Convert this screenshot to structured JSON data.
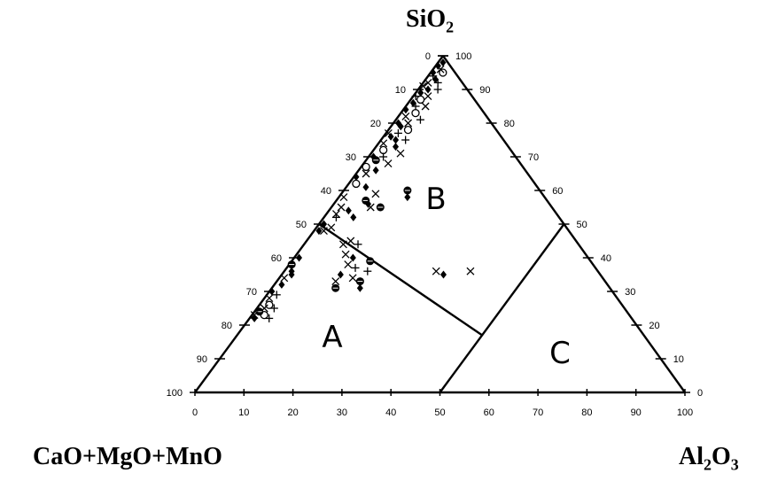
{
  "chart_data": {
    "type": "scatter",
    "subtype": "ternary",
    "vertex_labels": {
      "top": {
        "main": "SiO",
        "sub": "2"
      },
      "left": {
        "main": "CaO+MgO+MnO",
        "sub": ""
      },
      "right": {
        "main": "Al",
        "sub": "2",
        "tail": "O",
        "sub2": "3"
      }
    },
    "axes": {
      "bottom_ticks": [
        "0",
        "10",
        "20",
        "30",
        "40",
        "50",
        "60",
        "70",
        "80",
        "90",
        "100"
      ],
      "left_ticks": [
        "0",
        "10",
        "20",
        "30",
        "40",
        "50",
        "60",
        "70",
        "80",
        "90",
        "100"
      ],
      "right_ticks": [
        "0",
        "10",
        "20",
        "30",
        "40",
        "50",
        "60",
        "70",
        "80",
        "90",
        "100"
      ],
      "range": [
        0,
        100
      ],
      "grid": false
    },
    "region_labels": [
      "A",
      "B",
      "C"
    ],
    "boundaries": [
      {
        "from": {
          "s": 50,
          "al": 0
        },
        "to": {
          "s": 17,
          "al": 50
        }
      },
      {
        "from": {
          "s": 0,
          "al": 50
        },
        "to": {
          "s": 50,
          "al": 50
        }
      }
    ],
    "marker_types": [
      "diamond",
      "cross",
      "plus",
      "circle",
      "bullseye"
    ],
    "points": [
      {
        "s": 98,
        "al": 1,
        "m": "diamond"
      },
      {
        "s": 97,
        "al": 0.5,
        "m": "diamond"
      },
      {
        "s": 96,
        "al": 1.5,
        "m": "cross"
      },
      {
        "s": 95,
        "al": 0.5,
        "m": "diamond"
      },
      {
        "s": 95,
        "al": 2.5,
        "m": "circle"
      },
      {
        "s": 94,
        "al": 1,
        "m": "plus"
      },
      {
        "s": 93,
        "al": 2,
        "m": "diamond"
      },
      {
        "s": 92,
        "al": 1,
        "m": "cross"
      },
      {
        "s": 92,
        "al": 3,
        "m": "plus"
      },
      {
        "s": 91,
        "al": 0.5,
        "m": "cross"
      },
      {
        "s": 90,
        "al": 2,
        "m": "diamond"
      },
      {
        "s": 90,
        "al": 4,
        "m": "plus"
      },
      {
        "s": 89,
        "al": 1,
        "m": "diamond"
      },
      {
        "s": 88,
        "al": 3,
        "m": "cross"
      },
      {
        "s": 88,
        "al": 0.5,
        "m": "plus"
      },
      {
        "s": 87,
        "al": 2,
        "m": "circle"
      },
      {
        "s": 86,
        "al": 1,
        "m": "diamond"
      },
      {
        "s": 85,
        "al": 4,
        "m": "cross"
      },
      {
        "s": 85,
        "al": 2,
        "m": "plus"
      },
      {
        "s": 84,
        "al": 0.5,
        "m": "diamond"
      },
      {
        "s": 83,
        "al": 3,
        "m": "circle"
      },
      {
        "s": 82,
        "al": 1.5,
        "m": "cross"
      },
      {
        "s": 81,
        "al": 5,
        "m": "plus"
      },
      {
        "s": 80,
        "al": 1,
        "m": "diamond"
      },
      {
        "s": 80,
        "al": 3,
        "m": "cross"
      },
      {
        "s": 79,
        "al": 2,
        "m": "diamond"
      },
      {
        "s": 78,
        "al": 4,
        "m": "circle"
      },
      {
        "s": 77,
        "al": 0.5,
        "m": "cross"
      },
      {
        "s": 77,
        "al": 2.5,
        "m": "plus"
      },
      {
        "s": 76,
        "al": 1.5,
        "m": "diamond"
      },
      {
        "s": 75,
        "al": 5,
        "m": "plus"
      },
      {
        "s": 75,
        "al": 3,
        "m": "diamond"
      },
      {
        "s": 74,
        "al": 1,
        "m": "cross"
      },
      {
        "s": 73,
        "al": 4,
        "m": "diamond"
      },
      {
        "s": 72,
        "al": 2,
        "m": "circle"
      },
      {
        "s": 71,
        "al": 6,
        "m": "cross"
      },
      {
        "s": 70,
        "al": 1,
        "m": "diamond"
      },
      {
        "s": 70,
        "al": 3,
        "m": "plus"
      },
      {
        "s": 69,
        "al": 2,
        "m": "bullseye"
      },
      {
        "s": 68,
        "al": 5,
        "m": "cross"
      },
      {
        "s": 67,
        "al": 1,
        "m": "circle"
      },
      {
        "s": 66,
        "al": 3.5,
        "m": "diamond"
      },
      {
        "s": 65,
        "al": 2,
        "m": "cross"
      },
      {
        "s": 64,
        "al": 0.5,
        "m": "diamond"
      },
      {
        "s": 62,
        "al": 1.5,
        "m": "circle"
      },
      {
        "s": 61,
        "al": 4,
        "m": "diamond"
      },
      {
        "s": 60,
        "al": 13,
        "m": "bullseye"
      },
      {
        "s": 58,
        "al": 14,
        "m": "diamond"
      },
      {
        "s": 58,
        "al": 1,
        "m": "cross"
      },
      {
        "s": 55,
        "al": 2,
        "m": "cross"
      },
      {
        "s": 55,
        "al": 10,
        "m": "bullseye"
      },
      {
        "s": 53,
        "al": 2,
        "m": "cross"
      },
      {
        "s": 52,
        "al": 2.5,
        "m": "plus"
      },
      {
        "s": 50,
        "al": 1,
        "m": "diamond"
      },
      {
        "s": 49,
        "al": 3,
        "m": "cross"
      },
      {
        "s": 48,
        "al": 1,
        "m": "diamond"
      },
      {
        "s": 48,
        "al": 2,
        "m": "cross"
      },
      {
        "s": 40,
        "al": 1,
        "m": "diamond"
      },
      {
        "s": 38,
        "al": 0.5,
        "m": "bullseye"
      },
      {
        "s": 36,
        "al": 1.5,
        "m": "diamond"
      },
      {
        "s": 35,
        "al": 2,
        "m": "diamond"
      },
      {
        "s": 34,
        "al": 1,
        "m": "cross"
      },
      {
        "s": 32,
        "al": 1.5,
        "m": "diamond"
      },
      {
        "s": 30,
        "al": 0.5,
        "m": "diamond"
      },
      {
        "s": 29,
        "al": 2,
        "m": "plus"
      },
      {
        "s": 28,
        "al": 1,
        "m": "cross"
      },
      {
        "s": 26,
        "al": 2,
        "m": "circle"
      },
      {
        "s": 25,
        "al": 3.5,
        "m": "plus"
      },
      {
        "s": 25,
        "al": 1.5,
        "m": "cross"
      },
      {
        "s": 24,
        "al": 1,
        "m": "bullseye"
      },
      {
        "s": 23,
        "al": 2.5,
        "m": "circle"
      },
      {
        "s": 23,
        "al": 0.5,
        "m": "cross"
      },
      {
        "s": 22,
        "al": 1,
        "m": "diamond"
      },
      {
        "s": 22,
        "al": 4,
        "m": "plus"
      },
      {
        "s": 38,
        "al": 12,
        "m": "cross"
      },
      {
        "s": 37,
        "al": 14,
        "m": "plus"
      },
      {
        "s": 39,
        "al": 16,
        "m": "bullseye"
      },
      {
        "s": 36,
        "al": 17,
        "m": "plus"
      },
      {
        "s": 35,
        "al": 12,
        "m": "diamond"
      },
      {
        "s": 34,
        "al": 15,
        "m": "cross"
      },
      {
        "s": 33,
        "al": 17,
        "m": "bullseye"
      },
      {
        "s": 33,
        "al": 12,
        "m": "cross"
      },
      {
        "s": 31,
        "al": 13,
        "m": "bullseye"
      },
      {
        "s": 31,
        "al": 18,
        "m": "diamond"
      },
      {
        "s": 36,
        "al": 31,
        "m": "cross"
      },
      {
        "s": 35,
        "al": 33,
        "m": "diamond"
      },
      {
        "s": 36,
        "al": 38,
        "m": "cross"
      },
      {
        "s": 41,
        "al": 10,
        "m": "cross"
      },
      {
        "s": 40,
        "al": 12,
        "m": "diamond"
      },
      {
        "s": 59,
        "al": 7,
        "m": "cross"
      },
      {
        "s": 57,
        "al": 6,
        "m": "bullseye"
      },
      {
        "s": 56,
        "al": 7,
        "m": "diamond"
      },
      {
        "s": 55,
        "al": 8,
        "m": "cross"
      },
      {
        "s": 54,
        "al": 4,
        "m": "diamond"
      },
      {
        "s": 52,
        "al": 6,
        "m": "diamond"
      },
      {
        "s": 45,
        "al": 9,
        "m": "cross"
      },
      {
        "s": 44,
        "al": 11,
        "m": "plus"
      },
      {
        "s": 44,
        "al": 8,
        "m": "cross"
      }
    ]
  }
}
